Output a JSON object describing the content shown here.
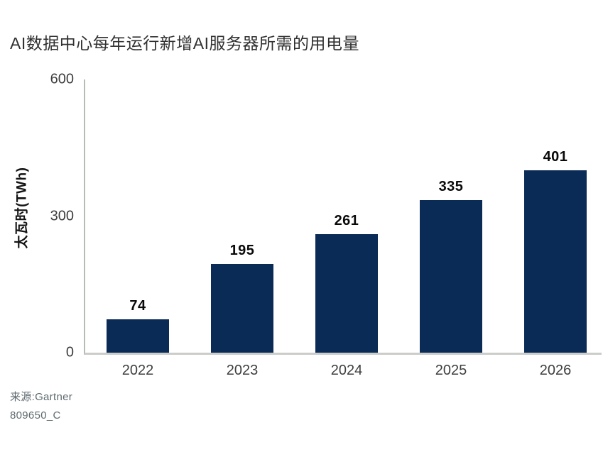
{
  "page": {
    "background": "#ffffff"
  },
  "chart_data": {
    "type": "bar",
    "title": "AI数据中心每年运行新增AI服务器所需的用电量",
    "ylabel": "太瓦时(TWh)",
    "xlabel": "",
    "categories": [
      "2022",
      "2023",
      "2024",
      "2025",
      "2026"
    ],
    "values": [
      74,
      195,
      261,
      335,
      401
    ],
    "ylim": [
      0,
      600
    ],
    "yticks": [
      0,
      300,
      600
    ],
    "grid": false,
    "legend": "none",
    "value_labels": true,
    "bar_color": "#0b2b57",
    "axis_line_color": "#b7bbb8",
    "baseline_color": "#cbcdca",
    "tick_label_color": "#3e3e3e",
    "value_label_color": "#0a0a0a"
  },
  "footer": {
    "source": "来源:Gartner",
    "code": "809650_C"
  }
}
